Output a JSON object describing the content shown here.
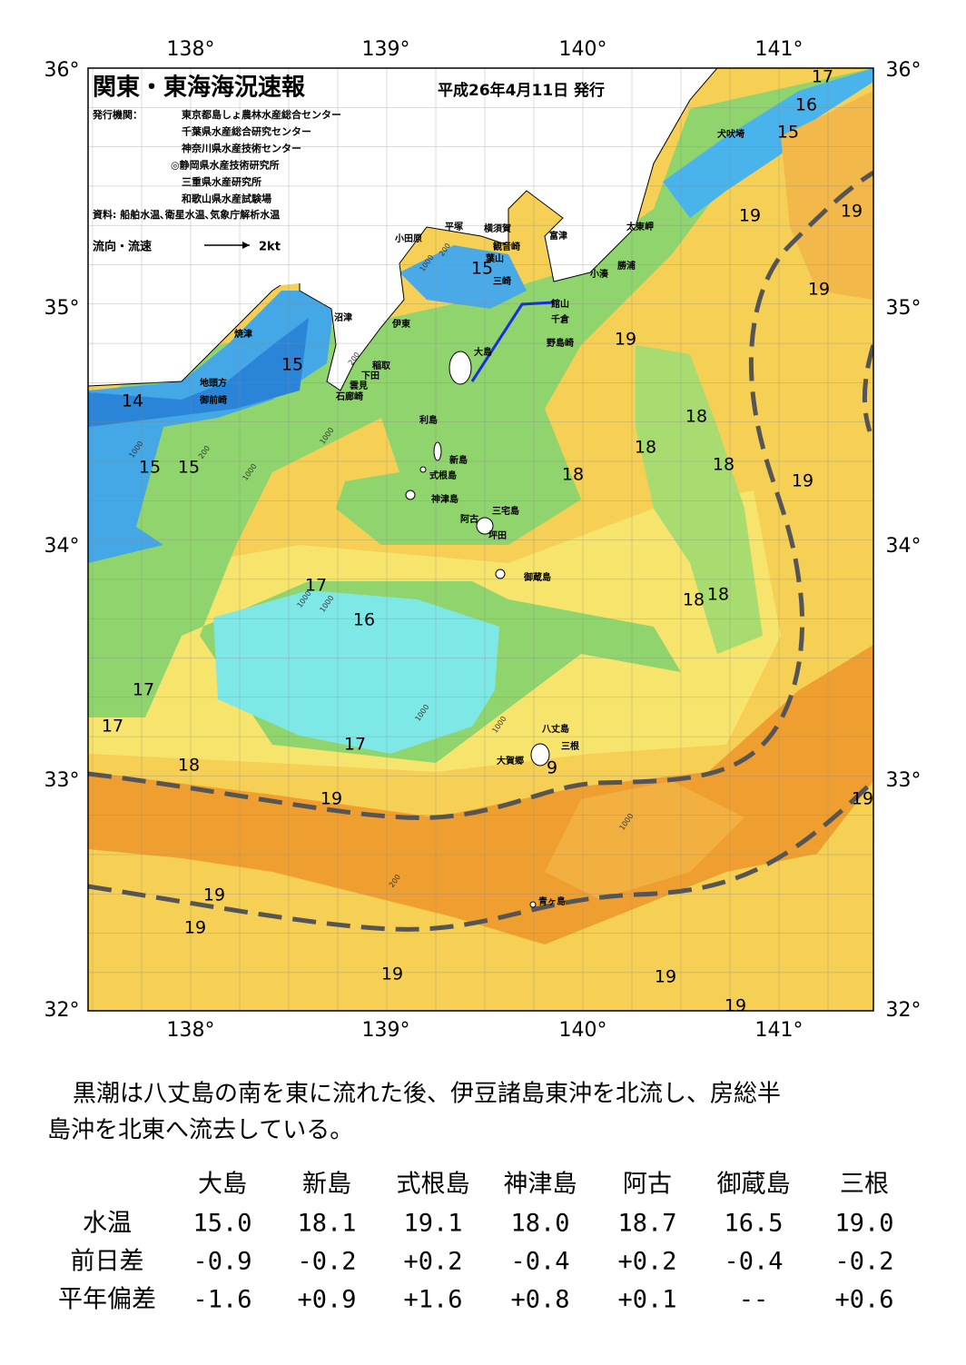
{
  "map": {
    "title": "関東・東海海況速報",
    "issued": "平成26年4月11日 発行",
    "publisher_heading": "発行機関：",
    "publishers": [
      "東京都島しょ農林水産総合センター",
      "千葉県水産総合研究センター",
      "神奈川県水産技術センター",
      "◎静岡県水産技術研究所",
      "三重県水産研究所",
      "和歌山県水産試験場"
    ],
    "source": "資料: 船舶水温､衛星水温､気象庁解析水温",
    "flow_legend": "流向・流速",
    "flow_scale": "2kt",
    "lon_labels": [
      "138°",
      "139°",
      "140°",
      "141°"
    ],
    "lat_labels": [
      "36°",
      "35°",
      "34°",
      "33°",
      "32°"
    ],
    "places": [
      "犬吠埼",
      "太東岬",
      "勝浦",
      "小湊",
      "富津",
      "横須賀",
      "平塚",
      "観音崎",
      "小田原",
      "葉山",
      "三崎",
      "館山",
      "千倉",
      "野島崎",
      "沼津",
      "伊東",
      "焼津",
      "稲取",
      "下田",
      "雲見",
      "石廊崎",
      "地頭方",
      "御前崎",
      "大島",
      "利島",
      "新島",
      "式根島",
      "神津島",
      "三宅島",
      "阿古",
      "坪田",
      "御蔵島",
      "八丈島",
      "三根",
      "大賀郷",
      "青ヶ島"
    ],
    "contour_labels": [
      17,
      16,
      15,
      19,
      19,
      19,
      15,
      19,
      15,
      14,
      18,
      18,
      18,
      18,
      15,
      15,
      19,
      17,
      18,
      18,
      16,
      17,
      17,
      17,
      18,
      9,
      19,
      19,
      19,
      19,
      19,
      19,
      19
    ],
    "depth_labels": [
      200,
      1000,
      200,
      1000,
      1000,
      200,
      1000,
      1000,
      1000,
      1000,
      1000,
      1000,
      200
    ]
  },
  "summary": [
    "黒潮は八丈島の南を東に流れた後、伊豆諸島東沖を北流し、房総半",
    "島沖を北東へ流去している。"
  ],
  "table": {
    "header": [
      "大島",
      "新島",
      "式根島",
      "神津島",
      "阿古",
      "御蔵島",
      "三根"
    ],
    "rows": [
      {
        "label": "水温",
        "values": [
          "15.0",
          "18.1",
          "19.1",
          "18.0",
          "18.7",
          "16.5",
          "19.0"
        ]
      },
      {
        "label": "前日差",
        "values": [
          "-0.9",
          "-0.2",
          "+0.2",
          "-0.4",
          "+0.2",
          "-0.4",
          "-0.2"
        ]
      },
      {
        "label": "平年偏差",
        "values": [
          "-1.6",
          "+0.9",
          "+1.6",
          "+0.8",
          "+0.1",
          "--",
          "+0.6"
        ]
      }
    ]
  }
}
